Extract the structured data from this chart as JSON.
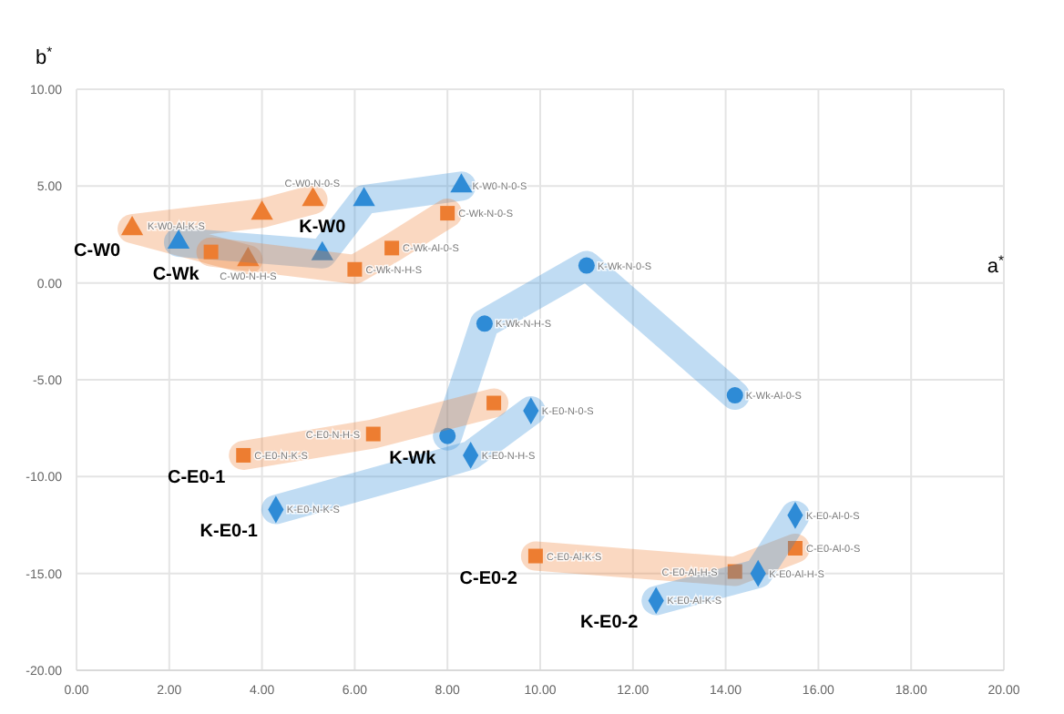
{
  "chart_data": {
    "type": "scatter",
    "xlabel": "a$^{*}$",
    "ylabel": "b$^{*}$",
    "xlim": [
      0,
      20
    ],
    "ylim": [
      -20,
      10
    ],
    "xticks": [
      {
        "value": 0,
        "label": "0.00"
      },
      {
        "value": 2,
        "label": "2.00"
      },
      {
        "value": 4,
        "label": "4.00"
      },
      {
        "value": 6,
        "label": "6.00"
      },
      {
        "value": 8,
        "label": "8.00"
      },
      {
        "value": 10,
        "label": "10.00"
      },
      {
        "value": 12,
        "label": "12.00"
      },
      {
        "value": 14,
        "label": "14.00"
      },
      {
        "value": 16,
        "label": "16.00"
      },
      {
        "value": 18,
        "label": "18.00"
      },
      {
        "value": 20,
        "label": "20.00"
      }
    ],
    "yticks": [
      {
        "value": -20,
        "label": "-20.00"
      },
      {
        "value": -15,
        "label": "-15.00"
      },
      {
        "value": -10,
        "label": "-10.00"
      },
      {
        "value": -5,
        "label": "-5.00"
      },
      {
        "value": 0,
        "label": "0.00"
      },
      {
        "value": 5,
        "label": "5.00"
      },
      {
        "value": 10,
        "label": "10.00"
      }
    ],
    "grid": true,
    "legend": false,
    "series": [
      {
        "name": "C-W0",
        "type": "line",
        "marker": "triangle",
        "color": "#ed7d31",
        "x": [
          3.7,
          1.2,
          4.0,
          5.1
        ],
        "values": [
          1.2,
          2.8,
          3.6,
          4.3
        ]
      },
      {
        "name": "K-W0",
        "type": "line",
        "marker": "triangle",
        "color": "#2e8bd6",
        "x": [
          2.2,
          5.3,
          6.2,
          8.3
        ],
        "values": [
          2.1,
          1.5,
          4.3,
          5.0
        ]
      },
      {
        "name": "C-Wk",
        "type": "line",
        "marker": "square",
        "color": "#ed7d31",
        "x": [
          2.9,
          6.0,
          6.8,
          8.0
        ],
        "values": [
          1.6,
          0.7,
          1.8,
          3.6
        ]
      },
      {
        "name": "K-Wk",
        "type": "line",
        "marker": "circle",
        "color": "#2e8bd6",
        "x": [
          8.0,
          8.8,
          11.0,
          14.2
        ],
        "values": [
          -7.9,
          -2.1,
          0.9,
          -5.8
        ]
      },
      {
        "name": "C-E0-1",
        "type": "line",
        "marker": "square",
        "color": "#ed7d31",
        "x": [
          3.6,
          6.4,
          9.0
        ],
        "values": [
          -8.9,
          -7.8,
          -6.2
        ]
      },
      {
        "name": "K-E0-1",
        "type": "line",
        "marker": "diamond",
        "color": "#2e8bd6",
        "x": [
          4.3,
          8.5,
          9.8
        ],
        "values": [
          -11.7,
          -8.9,
          -6.6
        ]
      },
      {
        "name": "C-E0-2",
        "type": "line",
        "marker": "square",
        "color": "#ed7d31",
        "x": [
          9.9,
          14.2,
          15.5
        ],
        "values": [
          -14.1,
          -14.9,
          -13.7
        ]
      },
      {
        "name": "K-E0-2",
        "type": "line",
        "marker": "diamond",
        "color": "#2e8bd6",
        "x": [
          12.5,
          14.7,
          15.5
        ],
        "values": [
          -16.4,
          -15.0,
          -12.0
        ]
      }
    ],
    "annotations": [
      {
        "text": "C-W0-N-0-S",
        "x": 5.1,
        "y": 4.3
      },
      {
        "text": "K-W0-N-0-S",
        "x": 8.3,
        "y": 5.0
      },
      {
        "text": "C-Wk-N-0-S",
        "x": 8.0,
        "y": 3.6
      },
      {
        "text": "C-Wk-Al-0-S",
        "x": 6.8,
        "y": 1.8
      },
      {
        "text": "C-Wk-N-H-S",
        "x": 6.0,
        "y": 0.7
      },
      {
        "text": "C-W0-N-H-S",
        "x": 3.7,
        "y": 1.2
      },
      {
        "text": "K-W0-Al-K-S",
        "x": 2.2,
        "y": 2.1
      },
      {
        "text": "K-Wk-N-H-S",
        "x": 8.8,
        "y": -2.1
      },
      {
        "text": "K-Wk-N-0-S",
        "x": 11.0,
        "y": 0.9
      },
      {
        "text": "K-Wk-Al-0-S",
        "x": 14.2,
        "y": -5.8
      },
      {
        "text": "K-E0-N-0-S",
        "x": 9.8,
        "y": -6.6
      },
      {
        "text": "K-E0-N-H-S",
        "x": 8.5,
        "y": -8.9
      },
      {
        "text": "C-E0-N-H-S",
        "x": 6.4,
        "y": -7.8
      },
      {
        "text": "C-E0-N-K-S",
        "x": 3.6,
        "y": -8.9
      },
      {
        "text": "K-E0-N-K-S",
        "x": 4.3,
        "y": -11.7
      },
      {
        "text": "C-E0-Al-K-S",
        "x": 9.9,
        "y": -14.1
      },
      {
        "text": "C-E0-Al-H-S",
        "x": 14.2,
        "y": -14.9
      },
      {
        "text": "C-E0-Al-0-S",
        "x": 15.5,
        "y": -13.7
      },
      {
        "text": "K-E0-Al-0-S",
        "x": 15.5,
        "y": -12.0
      },
      {
        "text": "K-E0-Al-H-S",
        "x": 14.7,
        "y": -15.0
      },
      {
        "text": "K-E0-Al-K-S",
        "x": 12.5,
        "y": -16.4
      }
    ]
  }
}
